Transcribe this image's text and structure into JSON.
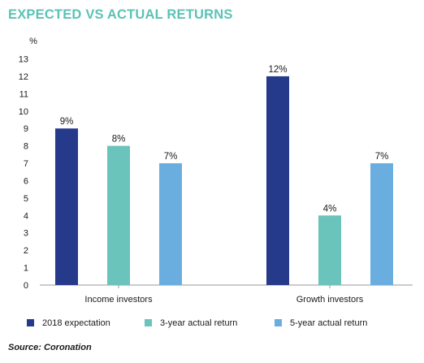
{
  "title": "EXPECTED VS ACTUAL RETURNS",
  "source": "Source: Coronation",
  "chart_data": {
    "type": "bar",
    "ylabel": "%",
    "ylim": [
      0,
      13
    ],
    "yticks": [
      0,
      1,
      2,
      3,
      4,
      5,
      6,
      7,
      8,
      9,
      10,
      11,
      12,
      13
    ],
    "grid": false,
    "legend_position": "bottom",
    "categories": [
      "Income investors",
      "Growth investors"
    ],
    "series": [
      {
        "name": "2018 expectation",
        "color": "#263a8c",
        "values": [
          9,
          12
        ],
        "labels": [
          "9%",
          "12%"
        ]
      },
      {
        "name": "3-year  actual return",
        "color": "#6bc4bc",
        "values": [
          8,
          4
        ],
        "labels": [
          "8%",
          "4%"
        ]
      },
      {
        "name": "5-year actual return",
        "color": "#6aaee0",
        "values": [
          7,
          7
        ],
        "labels": [
          "7%",
          "7%"
        ]
      }
    ]
  }
}
